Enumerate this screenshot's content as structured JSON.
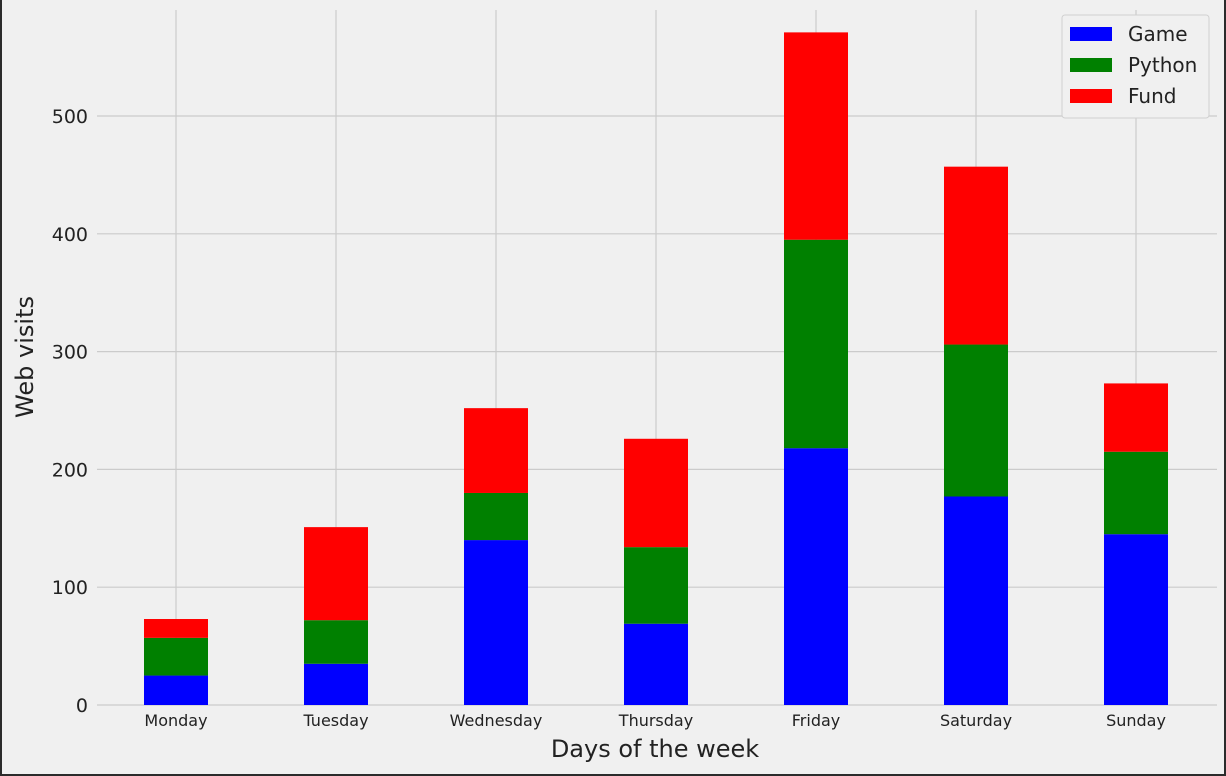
{
  "chart_data": {
    "type": "bar",
    "stacked": true,
    "title": "",
    "xlabel": "Days of the week",
    "ylabel": "Web visits",
    "categories": [
      "Monday",
      "Tuesday",
      "Wednesday",
      "Thursday",
      "Friday",
      "Saturday",
      "Sunday"
    ],
    "series": [
      {
        "name": "Game",
        "color": "#0000ff",
        "values": [
          25,
          35,
          140,
          69,
          218,
          177,
          145
        ]
      },
      {
        "name": "Python",
        "color": "#008000",
        "values": [
          32,
          37,
          40,
          65,
          177,
          129,
          70
        ]
      },
      {
        "name": "Fund",
        "color": "#ff0000",
        "values": [
          16,
          79,
          72,
          92,
          176,
          151,
          58
        ]
      }
    ],
    "ylim": [
      0,
      590
    ],
    "yticks": [
      0,
      100,
      200,
      300,
      400,
      500
    ],
    "grid": true,
    "legend_position": "top-right",
    "background": "#f0f0f0",
    "grid_color": "#cbcbcb"
  }
}
